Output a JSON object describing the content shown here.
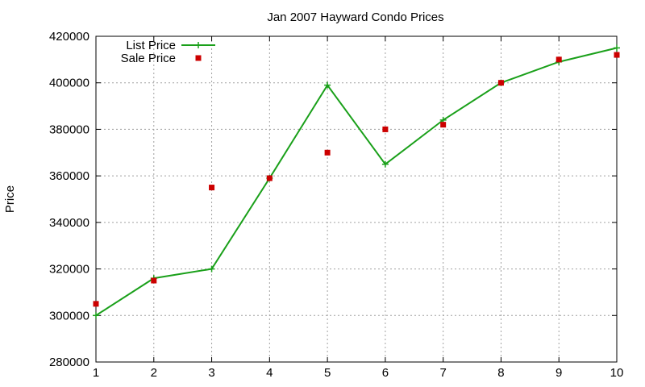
{
  "chart_data": {
    "type": "line",
    "title": "Jan 2007 Hayward Condo Prices",
    "xlabel": "",
    "ylabel": "Price",
    "xlim": [
      1,
      10
    ],
    "ylim": [
      280000,
      420000
    ],
    "xticks": [
      1,
      2,
      3,
      4,
      5,
      6,
      7,
      8,
      9,
      10
    ],
    "yticks": [
      280000,
      300000,
      320000,
      340000,
      360000,
      380000,
      400000,
      420000
    ],
    "grid": true,
    "legend_position": "top-left",
    "series": [
      {
        "name": "List Price",
        "style": "line-plus",
        "color": "#1aa01a",
        "x": [
          1,
          2,
          3,
          4,
          5,
          6,
          7,
          8,
          9,
          10
        ],
        "y": [
          300000,
          316000,
          320000,
          359000,
          399000,
          365000,
          384000,
          400000,
          409000,
          415000
        ]
      },
      {
        "name": "Sale Price",
        "style": "square-points",
        "color": "#cc0000",
        "x": [
          1,
          2,
          3,
          4,
          5,
          6,
          7,
          8,
          9,
          10
        ],
        "y": [
          305000,
          315000,
          355000,
          359000,
          370000,
          380000,
          382000,
          400000,
          410000,
          412000
        ]
      }
    ]
  }
}
